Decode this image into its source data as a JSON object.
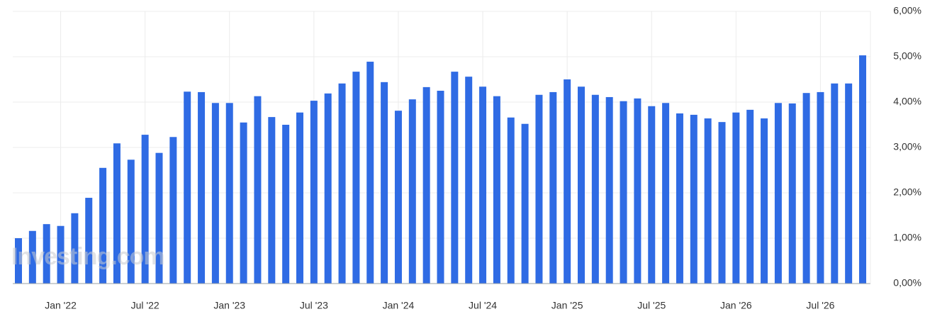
{
  "chart_data": {
    "type": "bar",
    "watermark": "Investing.com",
    "color": "#2f6be4",
    "grid": true,
    "categories": [
      null,
      null,
      null,
      "Jan '22",
      null,
      null,
      null,
      null,
      null,
      "Jul '22",
      null,
      null,
      null,
      null,
      null,
      "Jan '23",
      null,
      null,
      null,
      null,
      null,
      "Jul '23",
      null,
      null,
      null,
      null,
      null,
      "Jan '24",
      null,
      null,
      null,
      null,
      null,
      "Jul '24",
      null,
      null,
      null,
      null,
      null,
      "Jan '25",
      null,
      null,
      null,
      null,
      null,
      "Jul '25",
      null,
      null,
      null,
      null,
      null,
      "Jan '26",
      null,
      null,
      null,
      null,
      null,
      "Jul '26",
      null,
      null,
      null
    ],
    "values": [
      1.0,
      1.16,
      1.31,
      1.27,
      1.55,
      1.89,
      2.55,
      3.09,
      2.73,
      3.28,
      2.88,
      3.23,
      4.23,
      4.22,
      3.98,
      3.98,
      3.55,
      4.13,
      3.67,
      3.5,
      3.77,
      4.03,
      4.19,
      4.41,
      4.67,
      4.89,
      4.44,
      3.81,
      4.06,
      4.33,
      4.25,
      4.67,
      4.56,
      4.34,
      4.13,
      3.66,
      3.52,
      4.16,
      4.22,
      4.5,
      4.34,
      4.16,
      4.11,
      4.02,
      4.08,
      3.91,
      3.98,
      3.75,
      3.72,
      3.64,
      3.56,
      3.77,
      3.83,
      3.64,
      3.98,
      3.97,
      4.2,
      4.22,
      4.41,
      4.41,
      5.03
    ],
    "ylim": [
      0,
      6
    ],
    "yticks": [
      {
        "value": 0,
        "label": "0,00%"
      },
      {
        "value": 1,
        "label": "1,00%"
      },
      {
        "value": 2,
        "label": "2,00%"
      },
      {
        "value": 3,
        "label": "3,00%"
      },
      {
        "value": 4,
        "label": "4,00%"
      },
      {
        "value": 5,
        "label": "5,00%"
      },
      {
        "value": 6,
        "label": "6,00%"
      }
    ]
  }
}
